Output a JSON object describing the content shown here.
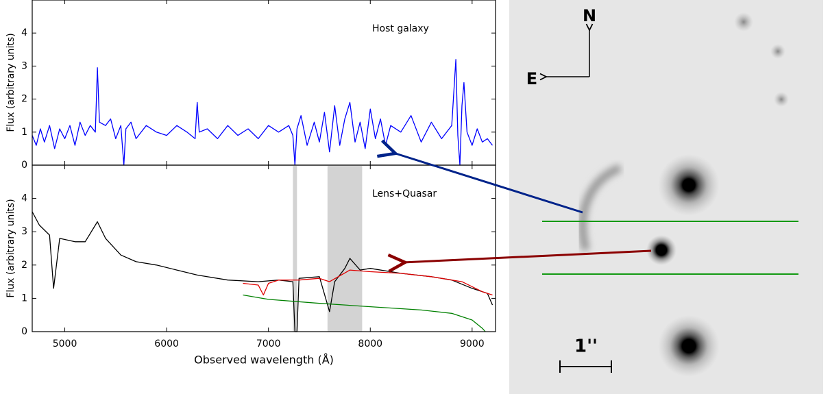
{
  "chart_data": [
    {
      "type": "line",
      "annotation": "Host galaxy",
      "y_label": "Flux (arbitrary units)",
      "xlim": [
        4680,
        9230
      ],
      "ylim": [
        0,
        5
      ],
      "xticks": [
        5000,
        6000,
        7000,
        8000,
        9000
      ],
      "yticks": [
        0,
        1,
        2,
        3,
        4
      ],
      "series": [
        {
          "color": "#0000ff",
          "x": [
            4680,
            4720,
            4760,
            4800,
            4850,
            4900,
            4950,
            5000,
            5050,
            5100,
            5150,
            5200,
            5250,
            5300,
            5320,
            5340,
            5400,
            5450,
            5500,
            5550,
            5580,
            5600,
            5650,
            5700,
            5800,
            5900,
            6000,
            6100,
            6200,
            6280,
            6300,
            6320,
            6400,
            6500,
            6600,
            6700,
            6800,
            6900,
            7000,
            7100,
            7200,
            7240,
            7260,
            7280,
            7320,
            7380,
            7450,
            7500,
            7550,
            7600,
            7650,
            7700,
            7750,
            7800,
            7850,
            7900,
            7950,
            8000,
            8050,
            8100,
            8150,
            8200,
            8300,
            8400,
            8500,
            8600,
            8700,
            8800,
            8840,
            8860,
            8880,
            8900,
            8920,
            8950,
            9000,
            9050,
            9100,
            9150,
            9200
          ],
          "values": [
            0.9,
            0.6,
            1.1,
            0.7,
            1.2,
            0.5,
            1.1,
            0.8,
            1.2,
            0.6,
            1.3,
            0.9,
            1.2,
            1.0,
            2.95,
            1.3,
            1.2,
            1.4,
            0.8,
            1.2,
            0.0,
            1.1,
            1.3,
            0.8,
            1.2,
            1.0,
            0.9,
            1.2,
            1.0,
            0.8,
            1.9,
            1.0,
            1.1,
            0.8,
            1.2,
            0.9,
            1.1,
            0.8,
            1.2,
            1.0,
            1.2,
            0.9,
            0.0,
            1.1,
            1.5,
            0.6,
            1.3,
            0.7,
            1.6,
            0.4,
            1.8,
            0.6,
            1.4,
            1.9,
            0.7,
            1.3,
            0.5,
            1.7,
            0.8,
            1.4,
            0.6,
            1.2,
            1.0,
            1.5,
            0.7,
            1.3,
            0.8,
            1.2,
            3.2,
            0.9,
            0.0,
            1.8,
            2.5,
            1.0,
            0.6,
            1.1,
            0.7,
            0.8,
            0.6
          ]
        }
      ]
    },
    {
      "type": "line",
      "annotation": "Lens+Quasar",
      "y_label": "Flux (arbitrary units)",
      "x_label": "Observed wavelength (Å)",
      "xlim": [
        4680,
        9230
      ],
      "ylim": [
        0,
        5
      ],
      "xticks": [
        5000,
        6000,
        7000,
        8000,
        9000
      ],
      "yticks": [
        0,
        1,
        2,
        3,
        4
      ],
      "shaded_regions": [
        [
          7240,
          7280
        ],
        [
          7580,
          7920
        ]
      ],
      "shade_color": "#d3d3d3",
      "series": [
        {
          "color": "#000000",
          "x": [
            4680,
            4750,
            4850,
            4890,
            4950,
            5100,
            5200,
            5320,
            5400,
            5550,
            5700,
            5900,
            6100,
            6300,
            6600,
            6900,
            7100,
            7240,
            7260,
            7280,
            7300,
            7500,
            7600,
            7650,
            7750,
            7800,
            7900,
            8000,
            8300,
            8600,
            8800,
            9000,
            9150,
            9200
          ],
          "values": [
            3.6,
            3.2,
            2.9,
            1.3,
            2.8,
            2.7,
            2.7,
            3.3,
            2.8,
            2.3,
            2.1,
            2.0,
            1.85,
            1.7,
            1.55,
            1.5,
            1.55,
            1.5,
            0,
            0,
            1.6,
            1.65,
            0.6,
            1.5,
            1.9,
            2.2,
            1.85,
            1.9,
            1.75,
            1.65,
            1.55,
            1.3,
            1.15,
            0.8
          ]
        },
        {
          "color": "#e00000",
          "x": [
            6750,
            6900,
            6950,
            7000,
            7100,
            7300,
            7500,
            7600,
            7800,
            8000,
            8300,
            8600,
            8900,
            9100,
            9200
          ],
          "values": [
            1.45,
            1.4,
            1.1,
            1.45,
            1.55,
            1.55,
            1.6,
            1.5,
            1.85,
            1.8,
            1.75,
            1.65,
            1.5,
            1.2,
            1.1
          ]
        },
        {
          "color": "#008000",
          "x": [
            6750,
            7000,
            7500,
            8000,
            8500,
            8800,
            9000,
            9100,
            9130
          ],
          "values": [
            1.1,
            0.97,
            0.85,
            0.75,
            0.65,
            0.55,
            0.35,
            0.1,
            0.0
          ]
        }
      ]
    }
  ],
  "image_panel": {
    "north": "N",
    "east": "E",
    "scale": "1''"
  }
}
